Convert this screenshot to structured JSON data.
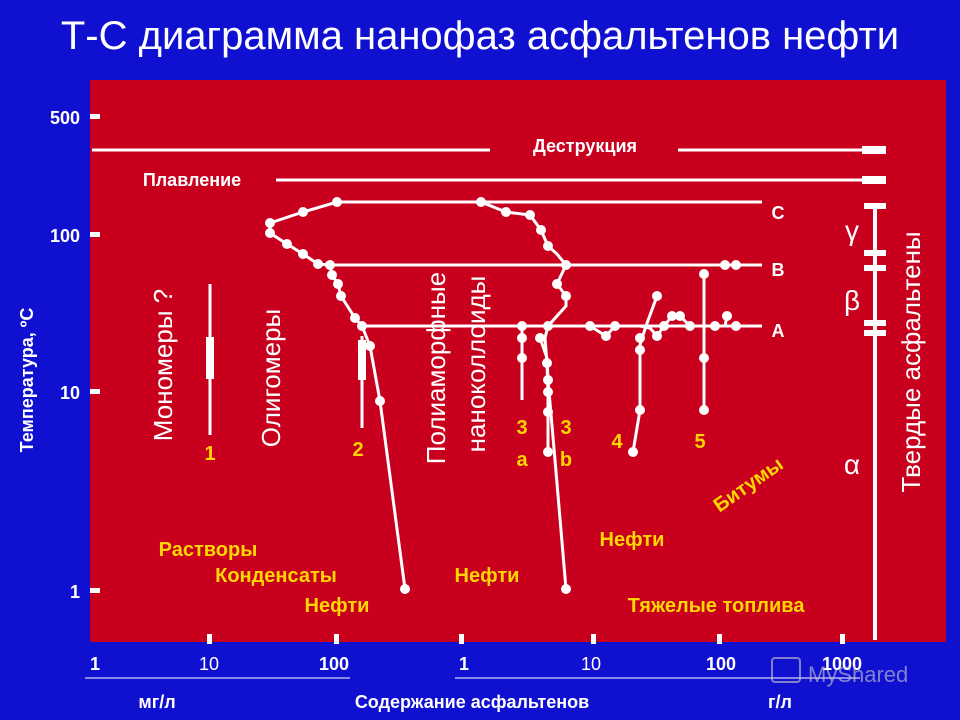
{
  "title": "Т-С диаграмма нанофаз асфальтенов нефти",
  "y_axis": {
    "label": "Температура, ºС",
    "ticks": [
      "500",
      "100",
      "10",
      "1"
    ]
  },
  "x_axis": {
    "label": "Содержание асфальтенов",
    "left_unit": "мг/л",
    "right_unit": "г/л",
    "left_ticks": [
      "1",
      "10",
      "100"
    ],
    "right_ticks": [
      "1",
      "10",
      "100",
      "1000"
    ]
  },
  "lines": {
    "destruction": "Деструкция",
    "melting": "Плавление",
    "c": "C",
    "b": "B",
    "a": "A"
  },
  "phases": {
    "monomers": "Мономеры ?",
    "oligomers": "Олигомеры",
    "polymorphic_1": "Полиаморфные",
    "polymorphic_2": "наноколлоиды",
    "solid": "Твердые асфальтены",
    "gamma": "γ",
    "beta": "β",
    "alpha": "α"
  },
  "numbers": {
    "n1": "1",
    "n2": "2",
    "n3a_1": "3",
    "n3a_2": "a",
    "n3b_1": "3",
    "n3b_2": "b",
    "n4": "4",
    "n5": "5"
  },
  "regions": {
    "solutions": "Растворы",
    "condensates": "Конденсаты",
    "oils_left": "Нефти",
    "oils_mid": "Нефти",
    "oils_right": "Нефти",
    "heavy_fuels": "Тяжелые топлива",
    "bitumens": "Битумы"
  },
  "watermark": "MyShared"
}
